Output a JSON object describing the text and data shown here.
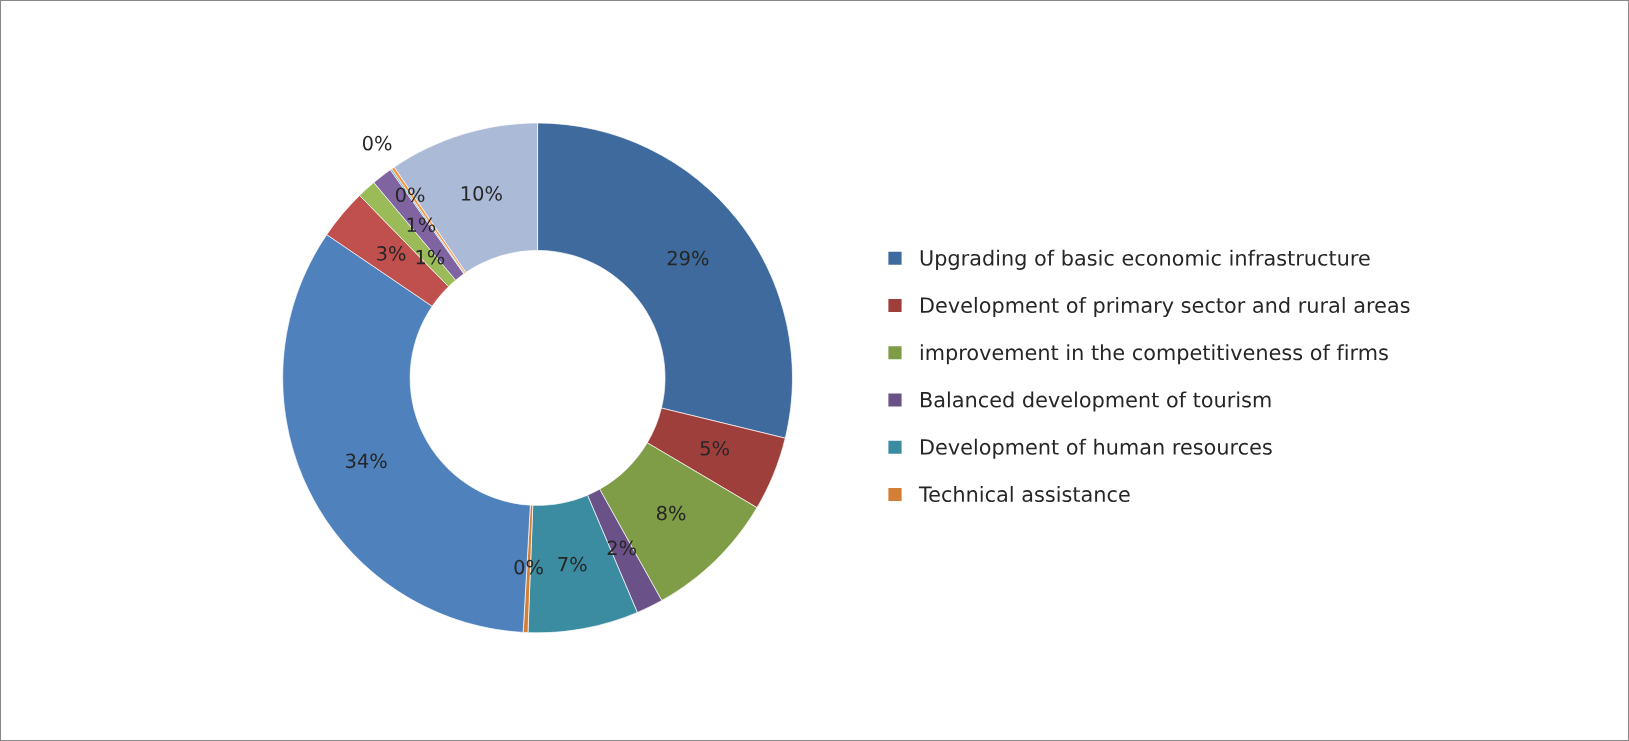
{
  "chart_data": {
    "type": "donut",
    "categories": [
      "Upgrading of basic economic infrastructure",
      "Development of primary sector and rural areas",
      "improvement in the competitiveness of firms",
      "Balanced development of tourism",
      "Development of human resources",
      "Technical assistance",
      null,
      null,
      null,
      null,
      null,
      null,
      null
    ],
    "values": [
      28.8,
      4.7,
      8.4,
      1.7,
      7.0,
      0.3,
      33.6,
      3.2,
      1.2,
      1.3,
      0.1,
      0.2,
      9.5
    ],
    "value_labels": [
      "29%",
      "5%",
      "8%",
      "2%",
      "7%",
      "0%",
      "34%",
      "3%",
      "1%",
      "1%",
      "0%",
      "0%",
      "10%"
    ],
    "colors": [
      "#3f6a9e",
      "#9e3f3c",
      "#7f9d47",
      "#6a5187",
      "#3c8ca1",
      "#d47f35",
      "#4f81bd",
      "#c0504d",
      "#9bbb59",
      "#8064a2",
      "#4bacc6",
      "#f79646",
      "#aabad7"
    ],
    "legend": "right"
  }
}
